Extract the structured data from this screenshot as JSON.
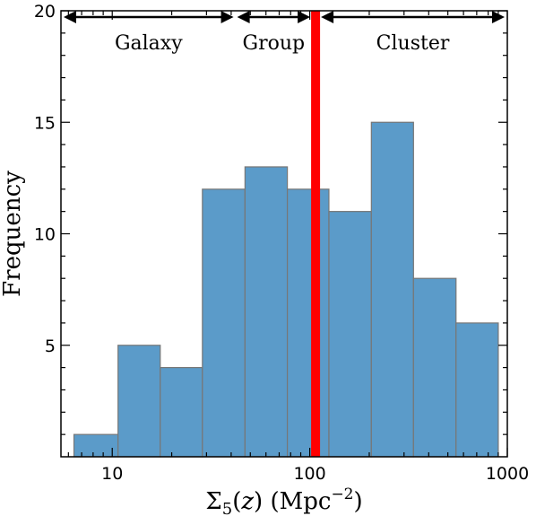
{
  "chart_data": {
    "type": "bar",
    "subtype": "histogram",
    "x_scale": "log",
    "xlabel": "Σ5(z) (Mpc⁻²)",
    "ylabel": "Frequency",
    "xlim": [
      5.5,
      1000
    ],
    "ylim": [
      0,
      20
    ],
    "x_ticks": [
      {
        "value": 10,
        "label": "10"
      },
      {
        "value": 100,
        "label": "100"
      },
      {
        "value": 1000,
        "label": "1000"
      }
    ],
    "y_ticks": [
      {
        "value": 5,
        "label": "5"
      },
      {
        "value": 10,
        "label": "10"
      },
      {
        "value": 15,
        "label": "15"
      },
      {
        "value": 20,
        "label": "20"
      }
    ],
    "bins": [
      {
        "x0": 6.4,
        "x1": 10.7,
        "count": 1
      },
      {
        "x0": 10.7,
        "x1": 17.5,
        "count": 5
      },
      {
        "x0": 17.5,
        "x1": 28.6,
        "count": 4
      },
      {
        "x0": 28.6,
        "x1": 47.0,
        "count": 12
      },
      {
        "x0": 47.0,
        "x1": 77.0,
        "count": 13
      },
      {
        "x0": 77.0,
        "x1": 125.0,
        "count": 12
      },
      {
        "x0": 125.0,
        "x1": 205.0,
        "count": 11
      },
      {
        "x0": 205.0,
        "x1": 335.0,
        "count": 15
      },
      {
        "x0": 335.0,
        "x1": 550.0,
        "count": 8
      },
      {
        "x0": 550.0,
        "x1": 900.0,
        "count": 6
      }
    ],
    "threshold_line": {
      "x": 107,
      "color": "#ff0000"
    },
    "regions": [
      {
        "label": "Galaxy",
        "x0": 5.5,
        "x1": 42
      },
      {
        "label": "Group",
        "x0": 42,
        "x1": 107
      },
      {
        "label": "Cluster",
        "x0": 107,
        "x1": 1000
      }
    ],
    "colors": {
      "bar_fill": "#5b9bc9",
      "bar_edge": "#777777",
      "threshold": "#ff0000"
    },
    "grid": false
  }
}
